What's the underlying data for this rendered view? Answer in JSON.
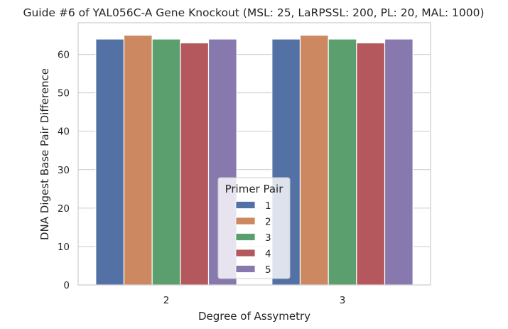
{
  "chart_data": {
    "type": "bar",
    "title": "Guide #6 of YAL056C-A Gene Knockout (MSL: 25, LaRPSSL: 200, PL: 20, MAL: 1000)",
    "xlabel": "Degree of Assymetry",
    "ylabel": "DNA Digest Base Pair Difference",
    "categories": [
      "2",
      "3"
    ],
    "ylim": [
      0,
      68.25
    ],
    "yticks": [
      0,
      10,
      20,
      30,
      40,
      50,
      60
    ],
    "grid": true,
    "legend": {
      "title": "Primer Pair",
      "placement": "lower-center"
    },
    "series": [
      {
        "name": "1",
        "color": "#5471a5",
        "values": [
          64,
          64
        ]
      },
      {
        "name": "2",
        "color": "#cc8860",
        "values": [
          65,
          65
        ]
      },
      {
        "name": "3",
        "color": "#5b9f6e",
        "values": [
          64,
          64
        ]
      },
      {
        "name": "4",
        "color": "#b4585d",
        "values": [
          63,
          63
        ]
      },
      {
        "name": "5",
        "color": "#8779ae",
        "values": [
          64,
          64
        ]
      }
    ]
  }
}
